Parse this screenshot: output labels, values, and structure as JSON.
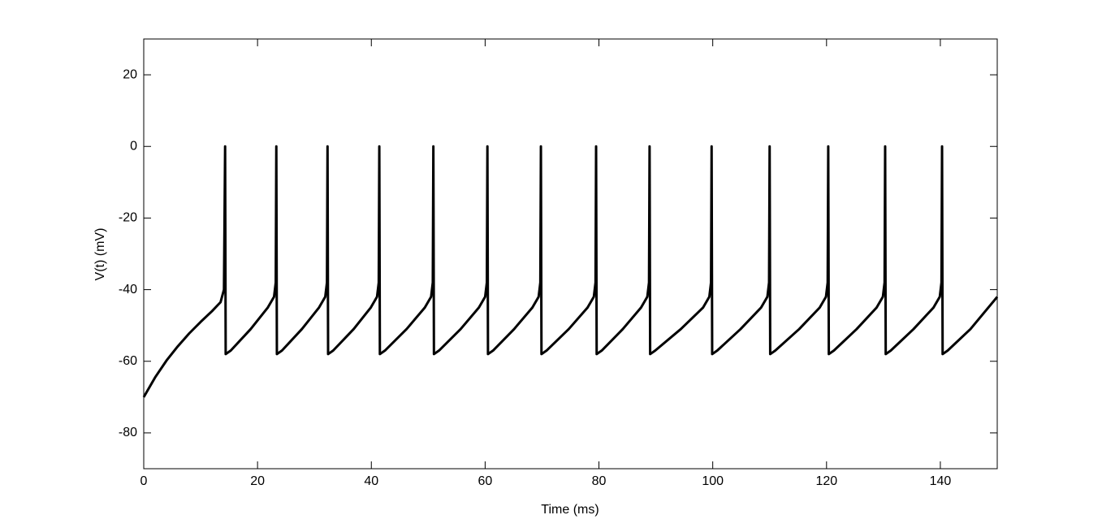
{
  "chart_data": {
    "type": "line",
    "xlabel": "Time (ms)",
    "ylabel": "V(t) (mV)",
    "color": "#000000",
    "xlim": [
      0,
      150
    ],
    "xticks": [
      0,
      20,
      40,
      60,
      80,
      100,
      120,
      140
    ],
    "ylim": [
      -90,
      30
    ],
    "yticks": [
      -80,
      -60,
      -40,
      -20,
      0,
      20
    ],
    "grid": false,
    "x": [
      0,
      2,
      4,
      6,
      8,
      10,
      12,
      13.5,
      14.1,
      14.3,
      14.4,
      15.3,
      18.8,
      21.8,
      22.9,
      23.2,
      23.3,
      23.4,
      24.3,
      27.8,
      30.8,
      31.9,
      32.2,
      32.3,
      32.4,
      33.3,
      36.9,
      39.9,
      41.0,
      41.3,
      41.4,
      41.5,
      42.4,
      46.2,
      49.4,
      50.5,
      50.8,
      50.9,
      51.0,
      51.9,
      55.7,
      58.9,
      60.0,
      60.3,
      60.4,
      60.5,
      61.4,
      65.1,
      68.3,
      69.4,
      69.7,
      69.8,
      69.9,
      70.8,
      74.7,
      78.0,
      79.1,
      79.4,
      79.5,
      79.6,
      80.5,
      84.2,
      87.4,
      88.5,
      88.8,
      88.9,
      89.0,
      89.9,
      94.4,
      98.3,
      99.4,
      99.7,
      99.8,
      99.9,
      100.8,
      104.9,
      108.5,
      109.6,
      109.9,
      110.0,
      110.1,
      111.0,
      115.2,
      118.8,
      119.9,
      120.2,
      120.3,
      120.4,
      121.3,
      125.3,
      128.8,
      129.9,
      130.2,
      130.3,
      130.4,
      131.3,
      135.3,
      138.8,
      139.9,
      140.2,
      140.3,
      140.4,
      141.3,
      145.3,
      150
    ],
    "values": [
      -70,
      -64.5,
      -59.8,
      -55.8,
      -52.2,
      -49,
      -46,
      -43.5,
      -40,
      0,
      -58,
      -57,
      -51,
      -45,
      -42,
      -38,
      0,
      -58,
      -57,
      -51,
      -45,
      -42,
      -38,
      0,
      -58,
      -57,
      -51,
      -45,
      -42,
      -38,
      0,
      -58,
      -57,
      -51,
      -45,
      -42,
      -38,
      0,
      -58,
      -57,
      -51,
      -45,
      -42,
      -38,
      0,
      -58,
      -57,
      -51,
      -45,
      -42,
      -38,
      0,
      -58,
      -57,
      -51,
      -45,
      -42,
      -38,
      0,
      -58,
      -57,
      -51,
      -45,
      -42,
      -38,
      0,
      -58,
      -57,
      -51,
      -45,
      -42,
      -38,
      0,
      -58,
      -57,
      -51,
      -45,
      -42,
      -38,
      0,
      -58,
      -57,
      -51,
      -45,
      -42,
      -38,
      0,
      -58,
      -57,
      -51,
      -45,
      -42,
      -38,
      0,
      -58,
      -57,
      -51,
      -45,
      -42,
      -38,
      0,
      -58,
      -57,
      -51,
      -42
    ]
  }
}
